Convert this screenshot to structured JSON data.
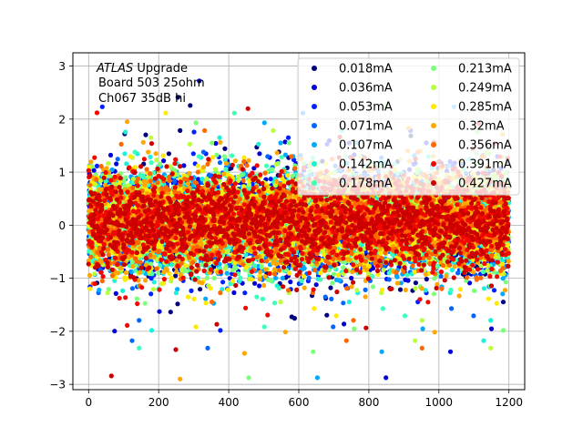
{
  "chart_data": {
    "type": "scatter",
    "annotation": {
      "atlas": "ATLAS",
      "upgrade": " Upgrade",
      "line2": "Board 503 25ohm",
      "line3": "Ch067 35dB hi"
    },
    "xlim": [
      -45,
      1245
    ],
    "ylim": [
      -3.1,
      3.25
    ],
    "x_ticks": [
      0,
      200,
      400,
      600,
      800,
      1000,
      1200
    ],
    "y_ticks": [
      -3,
      -2,
      -1,
      0,
      1,
      2,
      3
    ],
    "grid": true,
    "legend": {
      "placement": "top-right",
      "columns": 2
    },
    "points_per_series": 1200,
    "series": [
      {
        "name": "0.018mA",
        "color": "#00007f",
        "center": 0.05,
        "spread": 0.7
      },
      {
        "name": "0.036mA",
        "color": "#0000d8",
        "center": 0.05,
        "spread": 0.72
      },
      {
        "name": "0.053mA",
        "color": "#0020ff",
        "center": 0.05,
        "spread": 0.72
      },
      {
        "name": "0.071mA",
        "color": "#0066ff",
        "center": 0.05,
        "spread": 0.72
      },
      {
        "name": "0.107mA",
        "color": "#00a8ff",
        "center": 0.05,
        "spread": 0.72
      },
      {
        "name": "0.142mA",
        "color": "#1cf0da",
        "center": 0.05,
        "spread": 0.72
      },
      {
        "name": "0.178mA",
        "color": "#3dffb9",
        "center": 0.05,
        "spread": 0.72
      },
      {
        "name": "0.213mA",
        "color": "#7cff79",
        "center": 0.05,
        "spread": 0.72
      },
      {
        "name": "0.249mA",
        "color": "#b9ff3c",
        "center": 0.05,
        "spread": 0.72
      },
      {
        "name": "0.285mA",
        "color": "#ffea00",
        "center": 0.05,
        "spread": 0.72
      },
      {
        "name": "0.32mA",
        "color": "#ffa700",
        "center": 0.05,
        "spread": 0.75
      },
      {
        "name": "0.356mA",
        "color": "#ff6800",
        "center": 0.05,
        "spread": 0.72
      },
      {
        "name": "0.391mA",
        "color": "#f10800",
        "center": 0.05,
        "spread": 0.7
      },
      {
        "name": "0.427mA",
        "color": "#cc0000",
        "center": 0.05,
        "spread": 0.68
      }
    ]
  }
}
